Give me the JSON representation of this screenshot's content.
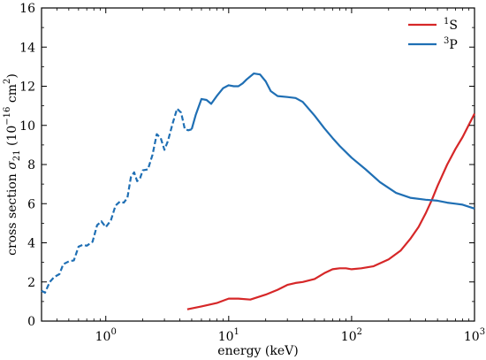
{
  "chart_data": {
    "type": "line",
    "title": "",
    "xlabel": "energy (keV)",
    "ylabel": "cross section σ21 (10−16 cm2)",
    "xscale": "log",
    "xlim": [
      0.3,
      1000
    ],
    "ylim": [
      0,
      16
    ],
    "yticks": [
      0,
      2,
      4,
      6,
      8,
      10,
      12,
      14,
      16
    ],
    "xticks": [
      {
        "value": 1,
        "base": "10",
        "exp": "0"
      },
      {
        "value": 10,
        "base": "10",
        "exp": "1"
      },
      {
        "value": 100,
        "base": "10",
        "exp": "2"
      },
      {
        "value": 1000,
        "base": "10",
        "exp": "3"
      }
    ],
    "grid": false,
    "legend": "top-right",
    "series": [
      {
        "name": "1S",
        "name_sup": "1",
        "name_main": "S",
        "color": "#d62728",
        "segments": [
          {
            "style": "solid",
            "x": [
              4.6,
              6,
              8,
              10,
              12,
              15,
              20,
              25,
              30,
              35,
              40,
              50,
              60,
              70,
              80,
              90,
              100,
              120,
              150,
              200,
              250,
              300,
              350,
              400,
              450,
              500,
              600,
              700,
              800,
              1000
            ],
            "y": [
              0.6,
              0.75,
              0.92,
              1.15,
              1.15,
              1.1,
              1.35,
              1.6,
              1.85,
              1.95,
              2.0,
              2.15,
              2.45,
              2.65,
              2.7,
              2.7,
              2.65,
              2.7,
              2.8,
              3.15,
              3.6,
              4.2,
              4.8,
              5.5,
              6.2,
              6.9,
              8.0,
              8.8,
              9.4,
              10.6
            ]
          }
        ]
      },
      {
        "name": "3P",
        "name_sup": "3",
        "name_main": "P",
        "color": "#1f6fb4",
        "segments": [
          {
            "style": "dashed",
            "x": [
              0.3,
              0.32,
              0.35,
              0.38,
              0.42,
              0.45,
              0.5,
              0.55,
              0.6,
              0.65,
              0.7,
              0.78,
              0.85,
              0.92,
              1.0,
              1.1,
              1.2,
              1.3,
              1.4,
              1.5,
              1.6,
              1.7,
              1.8,
              1.9,
              2.0,
              2.2,
              2.4,
              2.6,
              2.8,
              3.0,
              3.2,
              3.5,
              3.8,
              4.1,
              4.4,
              4.7,
              5.0
            ],
            "y": [
              1.55,
              1.45,
              2.0,
              2.25,
              2.4,
              2.9,
              3.05,
              3.1,
              3.8,
              3.9,
              3.85,
              4.05,
              4.9,
              5.1,
              4.8,
              5.15,
              5.9,
              6.1,
              6.05,
              6.3,
              7.35,
              7.6,
              7.15,
              7.3,
              7.7,
              7.75,
              8.5,
              9.55,
              9.35,
              8.75,
              9.2,
              10.1,
              10.85,
              10.65,
              9.8,
              9.75,
              9.8
            ]
          },
          {
            "style": "solid",
            "x": [
              5.0,
              5.4,
              6.0,
              6.6,
              7.2,
              8.0,
              9.0,
              10.0,
              11.0,
              12.0,
              13.0,
              14.0,
              16.0,
              18.0,
              20.0,
              22.0,
              25.0,
              30.0,
              35.0,
              40.0,
              50.0,
              60.0,
              70.0,
              80.0,
              100.0,
              130.0,
              170.0,
              230.0,
              300.0,
              400.0,
              500.0,
              600.0,
              700.0,
              800.0,
              1000.0
            ],
            "y": [
              9.8,
              10.55,
              11.35,
              11.3,
              11.1,
              11.5,
              11.9,
              12.05,
              12.0,
              12.0,
              12.15,
              12.35,
              12.65,
              12.6,
              12.25,
              11.75,
              11.5,
              11.45,
              11.4,
              11.2,
              10.5,
              9.85,
              9.35,
              8.95,
              8.35,
              7.75,
              7.1,
              6.55,
              6.3,
              6.2,
              6.15,
              6.05,
              6.0,
              5.95,
              5.75
            ]
          }
        ]
      }
    ]
  }
}
